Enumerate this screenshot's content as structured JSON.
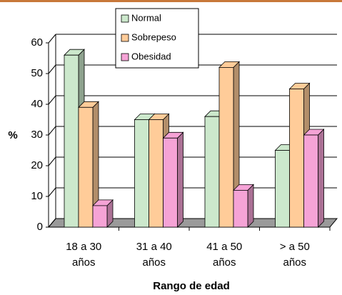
{
  "chart_data": {
    "type": "bar3d",
    "categories": [
      "18 a 30 años",
      "31 a 40 años",
      "41 a 50 años",
      "> a 50 años"
    ],
    "series": [
      {
        "name": "Normal",
        "color": "#cce8cc",
        "values": [
          56,
          35,
          36,
          25
        ]
      },
      {
        "name": "Sobrepeso",
        "color": "#ffcc99",
        "values": [
          39,
          35,
          52,
          45
        ]
      },
      {
        "name": "Obesidad",
        "color": "#f5a3d6",
        "values": [
          7,
          29,
          12,
          30
        ]
      }
    ],
    "ylabel": "%",
    "xlabel": "Rango de edad",
    "ylim": [
      0,
      60
    ],
    "yticks": [
      0,
      10,
      20,
      30,
      40,
      50,
      60
    ],
    "grid": true
  }
}
